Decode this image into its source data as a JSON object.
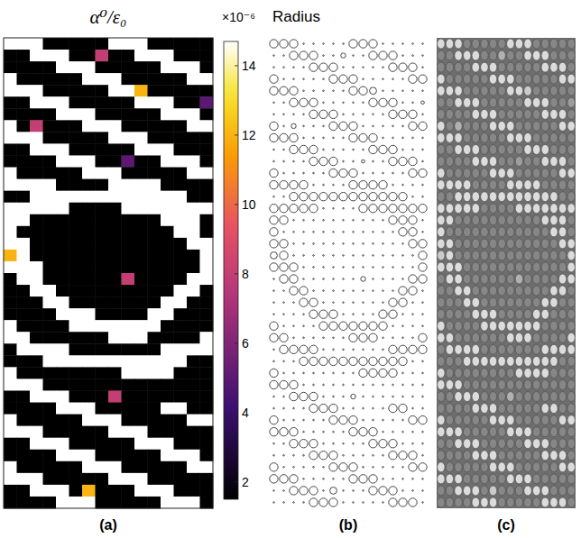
{
  "chart_data": {
    "type": "heatmap",
    "title": "α⁰/ε₀",
    "radius_title": "Radius",
    "panel_labels": [
      "(a)",
      "(b)",
      "(c)"
    ],
    "colorbar": {
      "range": [
        1.5,
        14.7
      ],
      "ticks": [
        2,
        4,
        6,
        8,
        10,
        12,
        14
      ],
      "multiplier_label": "×10⁻⁶"
    },
    "cells": [
      [
        14.7,
        14.7,
        14.7,
        1.5,
        1.5,
        1.5,
        1.5,
        1.5,
        14.7,
        14.7,
        14.7,
        1.5,
        1.5,
        1.5,
        1.5,
        1.5
      ],
      [
        1.5,
        1.5,
        14.7,
        14.7,
        14.7,
        1.5,
        1.5,
        8,
        1.5,
        1.5,
        14.7,
        14.7,
        14.7,
        1.5,
        1.5,
        1.5
      ],
      [
        1.5,
        1.5,
        1.5,
        1.5,
        14.7,
        14.7,
        14.7,
        1.5,
        1.5,
        1.5,
        1.5,
        1.5,
        14.7,
        14.7,
        14.7,
        1.5
      ],
      [
        14.7,
        1.5,
        1.5,
        1.5,
        1.5,
        1.5,
        14.7,
        14.7,
        14.7,
        1.5,
        1.5,
        1.5,
        1.5,
        1.5,
        14.7,
        14.7
      ],
      [
        14.7,
        14.7,
        14.7,
        1.5,
        1.5,
        1.5,
        1.5,
        1.5,
        14.7,
        14.7,
        12,
        1.5,
        1.5,
        1.5,
        1.5,
        1.5
      ],
      [
        1.5,
        1.5,
        14.7,
        14.7,
        14.7,
        1.5,
        1.5,
        1.5,
        1.5,
        1.5,
        14.7,
        14.7,
        14.7,
        1.5,
        1.5,
        5
      ],
      [
        1.5,
        1.5,
        1.5,
        1.5,
        14.7,
        14.7,
        14.7,
        1.5,
        1.5,
        1.5,
        1.5,
        1.5,
        14.7,
        14.7,
        14.7,
        1.5
      ],
      [
        14.7,
        1.5,
        8,
        1.5,
        1.5,
        1.5,
        14.7,
        14.7,
        14.7,
        1.5,
        1.5,
        1.5,
        1.5,
        1.5,
        14.7,
        14.7
      ],
      [
        14.7,
        14.7,
        14.7,
        1.5,
        1.5,
        1.5,
        1.5,
        1.5,
        14.7,
        14.7,
        14.7,
        1.5,
        1.5,
        1.5,
        1.5,
        1.5
      ],
      [
        1.5,
        1.5,
        14.7,
        14.7,
        14.7,
        1.5,
        1.5,
        1.5,
        1.5,
        1.5,
        14.7,
        14.7,
        14.7,
        1.5,
        1.5,
        1.5
      ],
      [
        1.5,
        1.5,
        1.5,
        1.5,
        14.7,
        14.7,
        14.7,
        1.5,
        1.5,
        5,
        1.5,
        1.5,
        14.7,
        14.7,
        14.7,
        1.5
      ],
      [
        14.7,
        1.5,
        1.5,
        1.5,
        1.5,
        1.5,
        14.7,
        14.7,
        14.7,
        1.5,
        1.5,
        1.5,
        1.5,
        1.5,
        14.7,
        14.7
      ],
      [
        14.7,
        14.7,
        14.7,
        14.7,
        1.5,
        1.5,
        1.5,
        1.5,
        14.7,
        14.7,
        14.7,
        14.7,
        1.5,
        1.5,
        1.5,
        1.5
      ],
      [
        1.5,
        1.5,
        14.7,
        14.7,
        14.7,
        14.7,
        14.7,
        14.7,
        14.7,
        14.7,
        14.7,
        14.7,
        14.7,
        14.7,
        1.5,
        1.5
      ],
      [
        14.7,
        14.7,
        14.7,
        14.7,
        14.7,
        1.5,
        1.5,
        1.5,
        1.5,
        14.7,
        14.7,
        14.7,
        14.7,
        14.7,
        14.7,
        14.7
      ],
      [
        14.7,
        14.7,
        1.5,
        1.5,
        1.5,
        1.5,
        1.5,
        1.5,
        1.5,
        1.5,
        1.5,
        1.5,
        14.7,
        14.7,
        14.7,
        1.5
      ],
      [
        14.7,
        1.5,
        1.5,
        1.5,
        1.5,
        1.5,
        1.5,
        1.5,
        1.5,
        1.5,
        1.5,
        1.5,
        1.5,
        14.7,
        14.7,
        1.5
      ],
      [
        14.7,
        14.7,
        1.5,
        1.5,
        1.5,
        1.5,
        1.5,
        1.5,
        1.5,
        1.5,
        1.5,
        1.5,
        1.5,
        1.5,
        14.7,
        14.7
      ],
      [
        12,
        14.7,
        1.5,
        1.5,
        1.5,
        1.5,
        1.5,
        1.5,
        1.5,
        1.5,
        1.5,
        1.5,
        1.5,
        1.5,
        1.5,
        14.7
      ],
      [
        14.7,
        14.7,
        14.7,
        1.5,
        1.5,
        1.5,
        1.5,
        1.5,
        1.5,
        1.5,
        1.5,
        1.5,
        1.5,
        1.5,
        1.5,
        14.7
      ],
      [
        1.5,
        14.7,
        14.7,
        1.5,
        1.5,
        1.5,
        1.5,
        1.5,
        1.5,
        8,
        1.5,
        1.5,
        1.5,
        1.5,
        14.7,
        14.7
      ],
      [
        1.5,
        1.5,
        14.7,
        14.7,
        1.5,
        1.5,
        1.5,
        1.5,
        1.5,
        1.5,
        1.5,
        1.5,
        1.5,
        14.7,
        14.7,
        1.5
      ],
      [
        1.5,
        1.5,
        1.5,
        14.7,
        14.7,
        1.5,
        1.5,
        1.5,
        1.5,
        1.5,
        1.5,
        1.5,
        14.7,
        14.7,
        1.5,
        1.5
      ],
      [
        1.5,
        1.5,
        1.5,
        1.5,
        14.7,
        14.7,
        14.7,
        1.5,
        1.5,
        1.5,
        1.5,
        14.7,
        14.7,
        1.5,
        1.5,
        1.5
      ],
      [
        14.7,
        1.5,
        1.5,
        1.5,
        1.5,
        14.7,
        14.7,
        14.7,
        14.7,
        14.7,
        14.7,
        14.7,
        1.5,
        1.5,
        1.5,
        1.5
      ],
      [
        14.7,
        14.7,
        1.5,
        1.5,
        1.5,
        1.5,
        1.5,
        1.5,
        14.7,
        14.7,
        14.7,
        1.5,
        1.5,
        1.5,
        1.5,
        14.7
      ],
      [
        1.5,
        14.7,
        14.7,
        14.7,
        14.7,
        1.5,
        1.5,
        1.5,
        1.5,
        1.5,
        1.5,
        1.5,
        14.7,
        14.7,
        14.7,
        14.7
      ],
      [
        1.5,
        1.5,
        1.5,
        14.7,
        14.7,
        14.7,
        14.7,
        14.7,
        14.7,
        14.7,
        14.7,
        14.7,
        14.7,
        14.7,
        1.5,
        1.5
      ],
      [
        14.7,
        1.5,
        1.5,
        1.5,
        1.5,
        1.5,
        1.5,
        1.5,
        1.5,
        14.7,
        14.7,
        14.7,
        14.7,
        1.5,
        1.5,
        1.5
      ],
      [
        14.7,
        14.7,
        14.7,
        1.5,
        1.5,
        1.5,
        1.5,
        1.5,
        1.5,
        1.5,
        1.5,
        1.5,
        1.5,
        1.5,
        1.5,
        1.5
      ],
      [
        1.5,
        1.5,
        14.7,
        14.7,
        14.7,
        1.5,
        1.5,
        1.5,
        8,
        1.5,
        1.5,
        1.5,
        1.5,
        1.5,
        1.5,
        1.5
      ],
      [
        1.5,
        1.5,
        1.5,
        1.5,
        14.7,
        14.7,
        14.7,
        1.5,
        1.5,
        1.5,
        1.5,
        1.5,
        14.7,
        14.7,
        1.5,
        1.5
      ],
      [
        14.7,
        1.5,
        1.5,
        1.5,
        1.5,
        1.5,
        14.7,
        14.7,
        14.7,
        1.5,
        1.5,
        1.5,
        1.5,
        1.5,
        14.7,
        14.7
      ],
      [
        14.7,
        14.7,
        14.7,
        1.5,
        1.5,
        1.5,
        1.5,
        1.5,
        14.7,
        14.7,
        14.7,
        1.5,
        1.5,
        1.5,
        1.5,
        1.5
      ],
      [
        1.5,
        1.5,
        14.7,
        14.7,
        14.7,
        1.5,
        1.5,
        1.5,
        1.5,
        1.5,
        14.7,
        14.7,
        14.7,
        1.5,
        1.5,
        1.5
      ],
      [
        1.5,
        1.5,
        1.5,
        1.5,
        14.7,
        14.7,
        14.7,
        1.5,
        1.5,
        1.5,
        1.5,
        1.5,
        14.7,
        14.7,
        14.7,
        1.5
      ],
      [
        14.7,
        1.5,
        1.5,
        1.5,
        1.5,
        1.5,
        14.7,
        14.7,
        14.7,
        1.5,
        1.5,
        1.5,
        1.5,
        1.5,
        14.7,
        14.7
      ],
      [
        14.7,
        14.7,
        14.7,
        1.5,
        1.5,
        1.5,
        1.5,
        1.5,
        14.7,
        14.7,
        14.7,
        1.5,
        1.5,
        1.5,
        1.5,
        1.5
      ],
      [
        1.5,
        1.5,
        14.7,
        14.7,
        14.7,
        1.5,
        12,
        1.5,
        1.5,
        1.5,
        14.7,
        14.7,
        14.7,
        1.5,
        1.5,
        1.5
      ],
      [
        1.5,
        1.5,
        1.5,
        1.5,
        14.7,
        14.7,
        14.7,
        1.5,
        1.5,
        1.5,
        1.5,
        1.5,
        14.7,
        14.7,
        14.7,
        1.5
      ]
    ]
  }
}
